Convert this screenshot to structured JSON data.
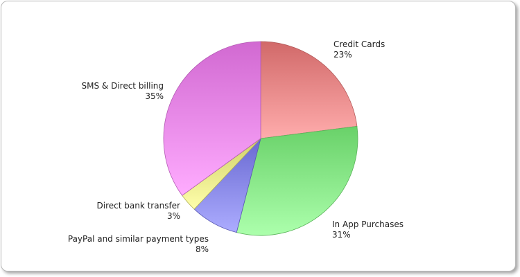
{
  "chart_data": {
    "type": "pie",
    "title": "",
    "legend": "none",
    "slices": [
      {
        "label": "Credit Cards",
        "value": 23,
        "value_label": "23%",
        "color": "#ff8080"
      },
      {
        "label": "In App Purchases",
        "value": 31,
        "value_label": "31%",
        "color": "#80ff80"
      },
      {
        "label": "PayPal and similar payment types",
        "value": 8,
        "value_label": "8%",
        "color": "#8080ff"
      },
      {
        "label": "Direct bank transfer",
        "value": 3,
        "value_label": "3%",
        "color": "#ffff80"
      },
      {
        "label": "SMS & Direct billing",
        "value": 35,
        "value_label": "35%",
        "color": "#ff80ff"
      }
    ]
  }
}
